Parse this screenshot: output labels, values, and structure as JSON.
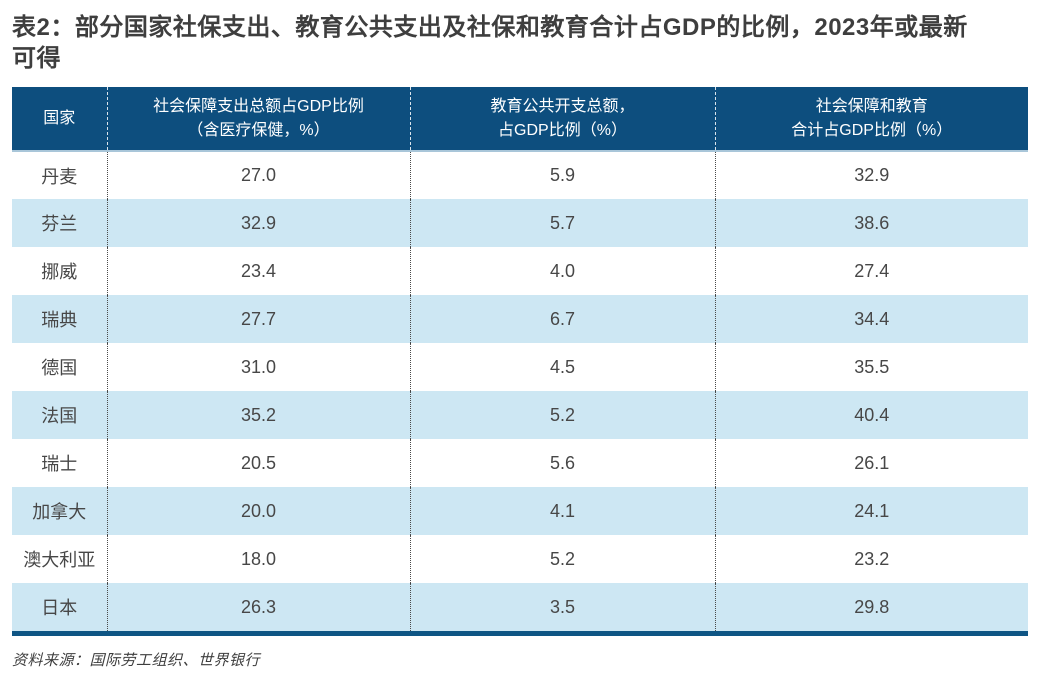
{
  "title": {
    "line1": "表2：部分国家社保支出、教育公共支出及社保和教育合计占GDP的比例，2023年或最新",
    "line2": "可得"
  },
  "table": {
    "columns": [
      {
        "label": "国家"
      },
      {
        "label": "社会保障支出总额占GDP比例\n（含医疗保健，%）"
      },
      {
        "label": "教育公共开支总额，\n占GDP比例（%）"
      },
      {
        "label": "社会保障和教育\n合计占GDP比例（%）"
      }
    ],
    "rows": [
      {
        "country": "丹麦",
        "social_pct": "27.0",
        "education_pct": "5.9",
        "combined_pct": "32.9"
      },
      {
        "country": "芬兰",
        "social_pct": "32.9",
        "education_pct": "5.7",
        "combined_pct": "38.6"
      },
      {
        "country": "挪威",
        "social_pct": "23.4",
        "education_pct": "4.0",
        "combined_pct": "27.4"
      },
      {
        "country": "瑞典",
        "social_pct": "27.7",
        "education_pct": "6.7",
        "combined_pct": "34.4"
      },
      {
        "country": "德国",
        "social_pct": "31.0",
        "education_pct": "4.5",
        "combined_pct": "35.5"
      },
      {
        "country": "法国",
        "social_pct": "35.2",
        "education_pct": "5.2",
        "combined_pct": "40.4"
      },
      {
        "country": "瑞士",
        "social_pct": "20.5",
        "education_pct": "5.6",
        "combined_pct": "26.1"
      },
      {
        "country": "加拿大",
        "social_pct": "20.0",
        "education_pct": "4.1",
        "combined_pct": "24.1"
      },
      {
        "country": "澳大利亚",
        "social_pct": "18.0",
        "education_pct": "5.2",
        "combined_pct": "23.2"
      },
      {
        "country": "日本",
        "social_pct": "26.3",
        "education_pct": "3.5",
        "combined_pct": "29.8"
      }
    ]
  },
  "source": "资料来源：国际劳工组织、世界银行",
  "colors": {
    "header_bg": "#0D4E7E",
    "row_alt_bg": "#CDE7F3",
    "bottom_border": "#0E5584",
    "header_divider": "#A9C6D9",
    "title_text": "#3E3E3E",
    "cell_text": "#474747",
    "header_text": "#FFFFFF"
  }
}
